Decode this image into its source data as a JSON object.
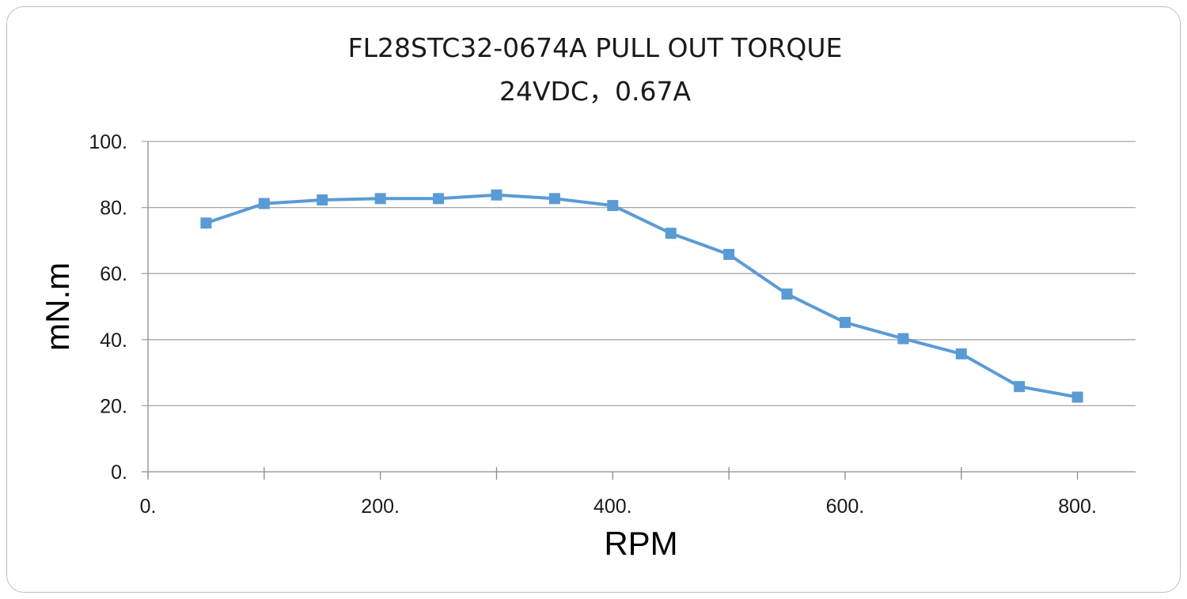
{
  "chart_data": {
    "type": "line",
    "title": "FL28STC32-0674A PULL OUT TORQUE",
    "subtitle": "24VDC，0.67A",
    "xlabel": "RPM",
    "ylabel": "mN.m",
    "xlim": [
      0,
      850
    ],
    "ylim": [
      0,
      100
    ],
    "x_ticks": [
      {
        "value": 0,
        "label": "0."
      },
      {
        "value": 200,
        "label": "200."
      },
      {
        "value": 400,
        "label": "400."
      },
      {
        "value": 600,
        "label": "600."
      },
      {
        "value": 800,
        "label": "800."
      }
    ],
    "x_minor_ticks": [
      100,
      300,
      500,
      700
    ],
    "y_ticks": [
      {
        "value": 0,
        "label": "0."
      },
      {
        "value": 20,
        "label": "20."
      },
      {
        "value": 40,
        "label": "40."
      },
      {
        "value": 60,
        "label": "60."
      },
      {
        "value": 80,
        "label": "80."
      },
      {
        "value": 100,
        "label": "100."
      }
    ],
    "grid": true,
    "legend": "none",
    "series": [
      {
        "color": "#5b9bd5",
        "marker": "square",
        "x": [
          50,
          100,
          150,
          200,
          250,
          300,
          350,
          400,
          450,
          500,
          550,
          600,
          650,
          700,
          750,
          800
        ],
        "y": [
          75.3,
          81.2,
          82.3,
          82.7,
          82.7,
          83.8,
          82.7,
          80.6,
          72.2,
          65.8,
          53.8,
          45.2,
          40.3,
          35.7,
          25.8,
          22.6
        ]
      }
    ]
  }
}
